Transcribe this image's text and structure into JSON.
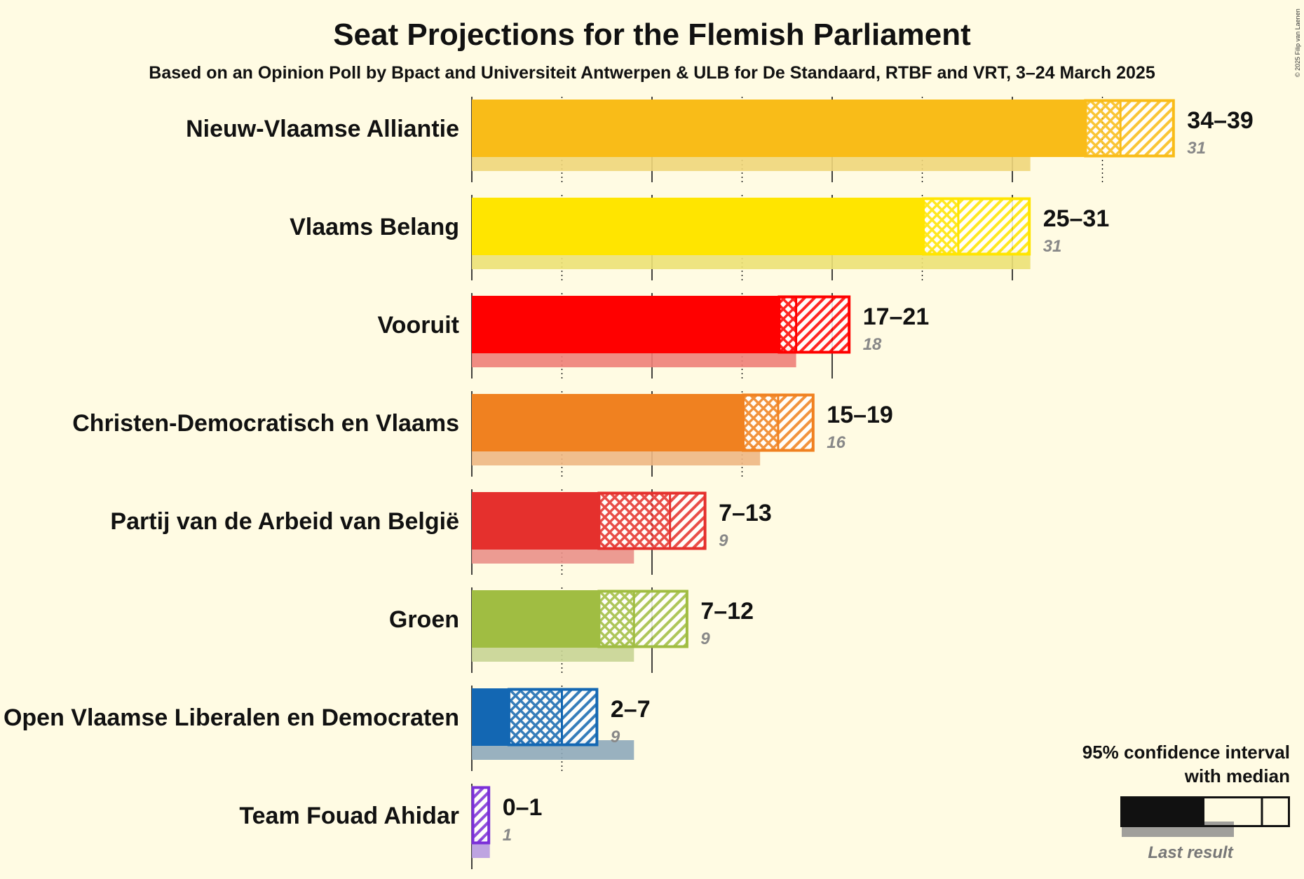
{
  "title": "Seat Projections for the Flemish Parliament",
  "subtitle": "Based on an Opinion Poll by Bpact and Universiteit Antwerpen & ULB for De Standaard, RTBF and VRT, 3–24 March 2025",
  "copyright": "© 2025 Filip van Laenen",
  "legend": {
    "ci_line1": "95% confidence interval",
    "ci_line2": "with median",
    "last_result": "Last result",
    "color": "#111111"
  },
  "chart_data": {
    "type": "bar",
    "orientation": "horizontal",
    "xlim": [
      0,
      40
    ],
    "gridlines_solid": [
      0,
      10,
      20,
      30
    ],
    "gridlines_dotted": [
      5,
      15,
      25,
      35
    ],
    "categories": [
      "Nieuw-Vlaamse Alliantie",
      "Vlaams Belang",
      "Vooruit",
      "Christen-Democratisch en Vlaams",
      "Partij van de Arbeid van België",
      "Groen",
      "Open Vlaamse Liberalen en Democraten",
      "Team Fouad Ahidar"
    ],
    "series": [
      {
        "name": "95% confidence interval with median",
        "items": [
          {
            "low": 34,
            "median": 36,
            "high": 39,
            "range_label": "34–39",
            "color": "#f9bc18",
            "last_color": "#f0d67a"
          },
          {
            "low": 25,
            "median": 27,
            "high": 31,
            "range_label": "25–31",
            "color": "#ffe500",
            "last_color": "#ece176"
          },
          {
            "low": 17,
            "median": 18,
            "high": 21,
            "range_label": "17–21",
            "color": "#ff0000",
            "last_color": "#ee8078"
          },
          {
            "low": 15,
            "median": 17,
            "high": 19,
            "range_label": "15–19",
            "color": "#f08120",
            "last_color": "#eeb783"
          },
          {
            "low": 7,
            "median": 11,
            "high": 13,
            "range_label": "7–13",
            "color": "#e5302d",
            "last_color": "#ea9088"
          },
          {
            "low": 7,
            "median": 9,
            "high": 12,
            "range_label": "7–12",
            "color": "#a0bd42",
            "last_color": "#c8d494"
          },
          {
            "low": 2,
            "median": 5,
            "high": 7,
            "range_label": "2–7",
            "color": "#1367b3",
            "last_color": "#8ea8ba"
          },
          {
            "low": 0,
            "median": 0,
            "high": 1,
            "range_label": "0–1",
            "color": "#7b2fd8",
            "last_color": "#b79ae0"
          }
        ]
      },
      {
        "name": "Last result",
        "values": [
          31,
          31,
          18,
          16,
          9,
          9,
          9,
          1
        ]
      }
    ]
  }
}
